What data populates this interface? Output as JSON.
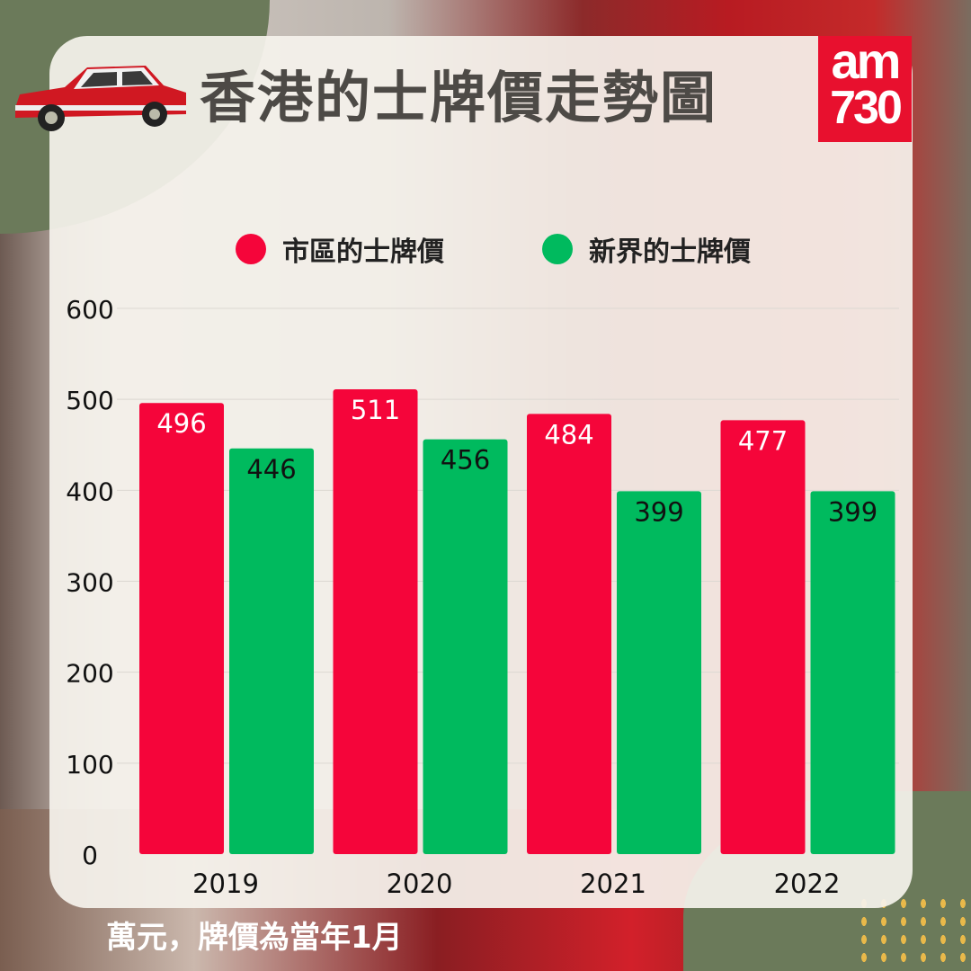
{
  "header": {
    "title": "香港的士牌價走勢圖",
    "logo_text": "am730"
  },
  "footnote": "萬元，牌價為當年1月",
  "colors": {
    "urban": "#f5053a",
    "nt": "#00ba5e",
    "background_blob": "#6b7a5a"
  },
  "chart_data": {
    "type": "bar",
    "categories": [
      "2019",
      "2020",
      "2021",
      "2022"
    ],
    "series": [
      {
        "name": "市區的士牌價",
        "values": [
          496,
          511,
          484,
          477
        ],
        "color": "#f5053a"
      },
      {
        "name": "新界的士牌價",
        "values": [
          446,
          456,
          399,
          399
        ],
        "color": "#00ba5e"
      }
    ],
    "ylim": [
      0,
      600
    ],
    "yticks": [
      0,
      100,
      200,
      300,
      400,
      500,
      600
    ],
    "grid": true,
    "legend_position": "top",
    "data_labels": true
  }
}
